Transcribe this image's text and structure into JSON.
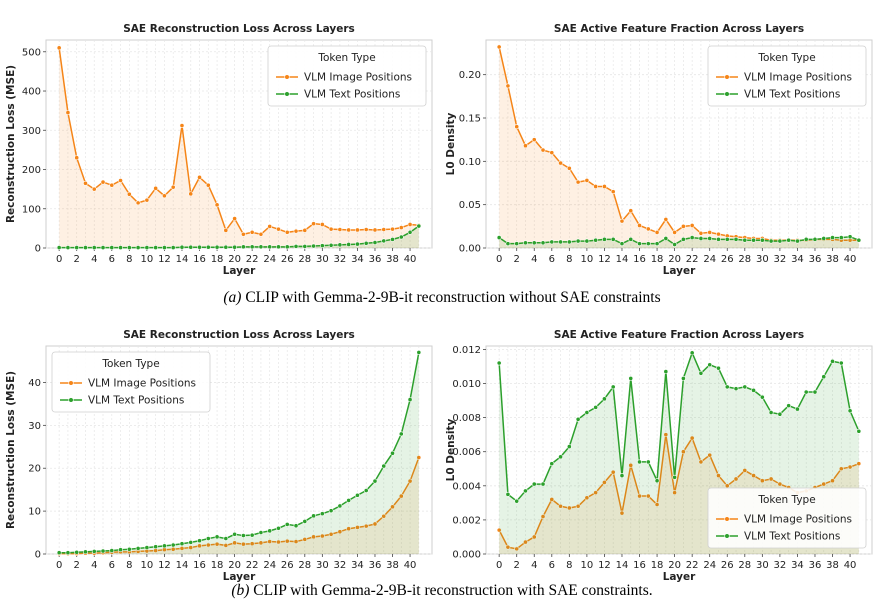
{
  "figure": {
    "caption_a_label": "(a)",
    "caption_a_text": "CLIP with Gemma-2-9B-it reconstruction without SAE constraints",
    "caption_b_label": "(b)",
    "caption_b_text": "CLIP with Gemma-2-9B-it reconstruction with SAE constraints."
  },
  "colors": {
    "image_series": "#f58518",
    "text_series": "#2ca02c",
    "grid": "#e3e3e3",
    "axis": "#444444"
  },
  "chart_data": [
    {
      "type": "line",
      "title": "SAE Reconstruction Loss Across Layers",
      "xlabel": "Layer",
      "ylabel": "Reconstruction Loss (MSE)",
      "xlim": [
        -1.5,
        42.5
      ],
      "ylim": [
        0,
        530
      ],
      "xticks": [
        0,
        2,
        4,
        6,
        8,
        10,
        12,
        14,
        16,
        18,
        20,
        22,
        24,
        26,
        28,
        30,
        32,
        34,
        36,
        38,
        40
      ],
      "yticks": [
        0,
        100,
        200,
        300,
        400,
        500
      ],
      "ytick_labels": [
        "0",
        "100",
        "200",
        "300",
        "400",
        "500"
      ],
      "grid": true,
      "legend_title": "Token Type",
      "legend_position": "top-right",
      "x": [
        0,
        1,
        2,
        3,
        4,
        5,
        6,
        7,
        8,
        9,
        10,
        11,
        12,
        13,
        14,
        15,
        16,
        17,
        18,
        19,
        20,
        21,
        22,
        23,
        24,
        25,
        26,
        27,
        28,
        29,
        30,
        31,
        32,
        33,
        34,
        35,
        36,
        37,
        38,
        39,
        40,
        41
      ],
      "series": [
        {
          "name": "VLM Image Positions",
          "values": [
            510,
            345,
            230,
            165,
            150,
            168,
            160,
            172,
            137,
            115,
            122,
            152,
            133,
            155,
            312,
            138,
            180,
            160,
            110,
            45,
            75,
            35,
            40,
            35,
            55,
            48,
            40,
            43,
            45,
            62,
            60,
            48,
            47,
            46,
            46,
            47,
            46,
            47,
            48,
            52,
            60,
            58
          ]
        },
        {
          "name": "VLM Text Positions",
          "values": [
            1,
            1,
            1,
            1,
            1,
            1,
            1,
            1,
            1,
            1,
            1,
            1,
            1,
            1,
            2,
            2,
            2,
            2,
            2,
            2,
            2,
            3,
            3,
            3,
            3,
            3,
            3,
            4,
            4,
            5,
            6,
            7,
            8,
            9,
            10,
            12,
            14,
            18,
            22,
            28,
            40,
            56
          ]
        }
      ]
    },
    {
      "type": "line",
      "title": "SAE Active Feature Fraction Across Layers",
      "xlabel": "Layer",
      "ylabel": "L0 Density",
      "xlim": [
        -1.5,
        42.5
      ],
      "ylim": [
        0,
        0.24
      ],
      "xticks": [
        0,
        2,
        4,
        6,
        8,
        10,
        12,
        14,
        16,
        18,
        20,
        22,
        24,
        26,
        28,
        30,
        32,
        34,
        36,
        38,
        40
      ],
      "yticks": [
        0,
        0.05,
        0.1,
        0.15,
        0.2
      ],
      "ytick_labels": [
        "0.00",
        "0.05",
        "0.10",
        "0.15",
        "0.20"
      ],
      "grid": true,
      "legend_title": "Token Type",
      "legend_position": "top-right",
      "x": [
        0,
        1,
        2,
        3,
        4,
        5,
        6,
        7,
        8,
        9,
        10,
        11,
        12,
        13,
        14,
        15,
        16,
        17,
        18,
        19,
        20,
        21,
        22,
        23,
        24,
        25,
        26,
        27,
        28,
        29,
        30,
        31,
        32,
        33,
        34,
        35,
        36,
        37,
        38,
        39,
        40,
        41
      ],
      "series": [
        {
          "name": "VLM Image Positions",
          "values": [
            0.232,
            0.187,
            0.14,
            0.118,
            0.125,
            0.113,
            0.11,
            0.098,
            0.092,
            0.076,
            0.078,
            0.071,
            0.071,
            0.065,
            0.031,
            0.043,
            0.026,
            0.022,
            0.018,
            0.033,
            0.018,
            0.025,
            0.026,
            0.017,
            0.018,
            0.016,
            0.014,
            0.013,
            0.012,
            0.011,
            0.011,
            0.009,
            0.009,
            0.009,
            0.009,
            0.009,
            0.01,
            0.01,
            0.01,
            0.009,
            0.009,
            0.009
          ]
        },
        {
          "name": "VLM Text Positions",
          "values": [
            0.012,
            0.005,
            0.005,
            0.006,
            0.006,
            0.006,
            0.007,
            0.007,
            0.007,
            0.008,
            0.008,
            0.009,
            0.01,
            0.01,
            0.005,
            0.01,
            0.005,
            0.005,
            0.005,
            0.011,
            0.004,
            0.01,
            0.012,
            0.011,
            0.011,
            0.01,
            0.01,
            0.01,
            0.009,
            0.009,
            0.009,
            0.008,
            0.008,
            0.009,
            0.008,
            0.01,
            0.01,
            0.011,
            0.012,
            0.012,
            0.013,
            0.009
          ]
        }
      ]
    },
    {
      "type": "line",
      "title": "SAE Reconstruction Loss Across Layers",
      "xlabel": "Layer",
      "ylabel": "Reconstruction Loss (MSE)",
      "xlim": [
        -1.5,
        42.5
      ],
      "ylim": [
        0,
        48.5
      ],
      "xticks": [
        0,
        2,
        4,
        6,
        8,
        10,
        12,
        14,
        16,
        18,
        20,
        22,
        24,
        26,
        28,
        30,
        32,
        34,
        36,
        38,
        40
      ],
      "yticks": [
        0,
        10,
        20,
        30,
        40
      ],
      "ytick_labels": [
        "0",
        "10",
        "20",
        "30",
        "40"
      ],
      "grid": true,
      "legend_title": "Token Type",
      "legend_position": "top-left",
      "x": [
        0,
        1,
        2,
        3,
        4,
        5,
        6,
        7,
        8,
        9,
        10,
        11,
        12,
        13,
        14,
        15,
        16,
        17,
        18,
        19,
        20,
        21,
        22,
        23,
        24,
        25,
        26,
        27,
        28,
        29,
        30,
        31,
        32,
        33,
        34,
        35,
        36,
        37,
        38,
        39,
        40,
        41
      ],
      "series": [
        {
          "name": "VLM Image Positions",
          "values": [
            0.1,
            0.1,
            0.1,
            0.2,
            0.2,
            0.3,
            0.4,
            0.5,
            0.5,
            0.6,
            0.7,
            0.8,
            1.0,
            1.1,
            1.3,
            1.5,
            1.9,
            2.1,
            2.3,
            2.0,
            2.6,
            2.3,
            2.4,
            2.6,
            2.9,
            2.8,
            3.0,
            2.9,
            3.4,
            4.0,
            4.2,
            4.6,
            5.2,
            5.9,
            6.2,
            6.5,
            7.0,
            8.8,
            11.0,
            13.5,
            17.0,
            22.5
          ]
        },
        {
          "name": "VLM Text Positions",
          "values": [
            0.3,
            0.3,
            0.4,
            0.5,
            0.6,
            0.7,
            0.8,
            1.0,
            1.1,
            1.3,
            1.5,
            1.7,
            1.9,
            2.1,
            2.4,
            2.7,
            3.1,
            3.6,
            4.0,
            3.6,
            4.6,
            4.3,
            4.4,
            5.0,
            5.4,
            6.0,
            6.9,
            6.6,
            7.6,
            8.9,
            9.4,
            10.1,
            11.2,
            12.5,
            13.7,
            14.8,
            17.0,
            20.5,
            23.5,
            28.0,
            36.0,
            47.0
          ]
        }
      ]
    },
    {
      "type": "line",
      "title": "SAE Active Feature Fraction Across Layers",
      "xlabel": "Layer",
      "ylabel": "L0 Density",
      "xlim": [
        -1.5,
        42.5
      ],
      "ylim": [
        0,
        0.0122
      ],
      "xticks": [
        0,
        2,
        4,
        6,
        8,
        10,
        12,
        14,
        16,
        18,
        20,
        22,
        24,
        26,
        28,
        30,
        32,
        34,
        36,
        38,
        40
      ],
      "yticks": [
        0,
        0.002,
        0.004,
        0.006,
        0.008,
        0.01,
        0.012
      ],
      "ytick_labels": [
        "0.000",
        "0.002",
        "0.004",
        "0.006",
        "0.008",
        "0.010",
        "0.012"
      ],
      "grid": true,
      "legend_title": "Token Type",
      "legend_position": "bottom-right",
      "x": [
        0,
        1,
        2,
        3,
        4,
        5,
        6,
        7,
        8,
        9,
        10,
        11,
        12,
        13,
        14,
        15,
        16,
        17,
        18,
        19,
        20,
        21,
        22,
        23,
        24,
        25,
        26,
        27,
        28,
        29,
        30,
        31,
        32,
        33,
        34,
        35,
        36,
        37,
        38,
        39,
        40,
        41
      ],
      "series": [
        {
          "name": "VLM Image Positions",
          "values": [
            0.0014,
            0.0004,
            0.0003,
            0.0007,
            0.001,
            0.0022,
            0.0032,
            0.0028,
            0.0027,
            0.0028,
            0.0033,
            0.0036,
            0.0042,
            0.0048,
            0.0024,
            0.0052,
            0.0034,
            0.0034,
            0.0029,
            0.007,
            0.0036,
            0.006,
            0.0068,
            0.0054,
            0.0058,
            0.0046,
            0.004,
            0.0044,
            0.0049,
            0.0046,
            0.0043,
            0.0044,
            0.0041,
            0.0039,
            0.0036,
            0.0037,
            0.0039,
            0.0041,
            0.0043,
            0.005,
            0.0051,
            0.0053
          ]
        },
        {
          "name": "VLM Text Positions",
          "values": [
            0.0112,
            0.0035,
            0.0031,
            0.0037,
            0.0041,
            0.0041,
            0.0053,
            0.0057,
            0.0063,
            0.0079,
            0.0083,
            0.0086,
            0.0091,
            0.0098,
            0.0046,
            0.0103,
            0.0054,
            0.0054,
            0.0043,
            0.0107,
            0.0045,
            0.0103,
            0.0118,
            0.0106,
            0.0111,
            0.0109,
            0.0098,
            0.0097,
            0.0098,
            0.0096,
            0.0092,
            0.0083,
            0.0082,
            0.0087,
            0.0085,
            0.0095,
            0.0095,
            0.0104,
            0.0113,
            0.0112,
            0.0084,
            0.0072
          ]
        }
      ]
    }
  ]
}
